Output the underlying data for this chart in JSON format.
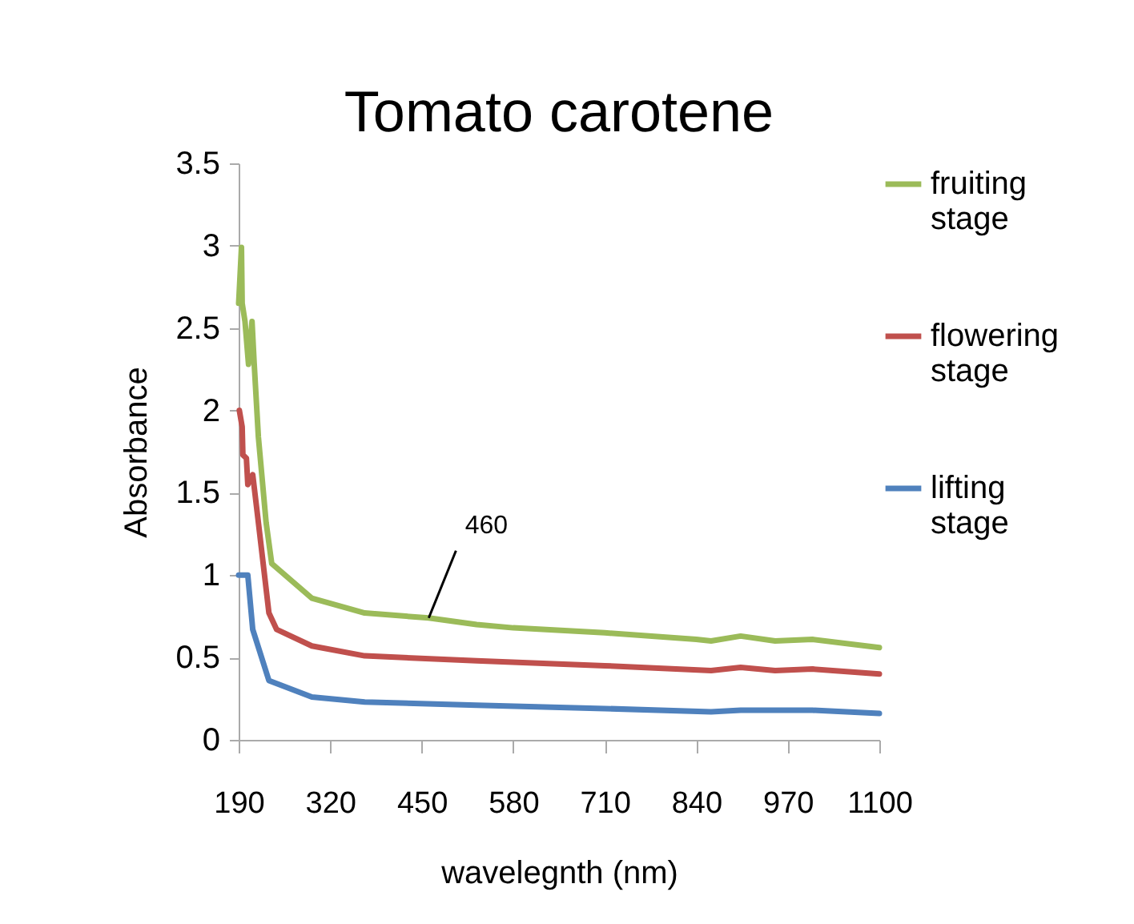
{
  "chart_data": {
    "type": "line",
    "title": "Tomato carotene",
    "xlabel": "wavelegnth (nm)",
    "ylabel": "Absorbance",
    "xlim": [
      190,
      1100
    ],
    "xticks": [
      190,
      320,
      450,
      580,
      710,
      840,
      970,
      1100
    ],
    "ylim": [
      0,
      3.5
    ],
    "yticks": [
      0,
      0.5,
      1,
      1.5,
      2,
      2.5,
      3,
      3.5
    ],
    "grid": false,
    "legend": "right",
    "marker": "none",
    "line_style": "solid",
    "annotations": [
      {
        "text": "460",
        "x": 460,
        "y": 0.74
      }
    ],
    "series": [
      {
        "name": "fruiting stage",
        "color": "#9bbb59",
        "x": [
          190,
          194,
          195,
          199,
          204,
          209,
          212,
          218,
          229,
          237,
          294,
          369,
          460,
          528,
          580,
          710,
          840,
          861,
          903,
          952,
          1005,
          1100
        ],
        "values": [
          2.65,
          2.99,
          2.65,
          2.54,
          2.28,
          2.54,
          2.29,
          1.84,
          1.32,
          1.07,
          0.86,
          0.77,
          0.74,
          0.7,
          0.68,
          0.65,
          0.61,
          0.6,
          0.63,
          0.6,
          0.61,
          0.56
        ]
      },
      {
        "name": "flowering stage",
        "color": "#c0504d",
        "x": [
          191,
          195,
          196,
          201,
          203,
          210,
          218,
          233,
          244,
          294,
          369,
          528,
          710,
          861,
          903,
          952,
          1005,
          1100
        ],
        "values": [
          2.0,
          1.9,
          1.73,
          1.71,
          1.55,
          1.61,
          1.32,
          0.77,
          0.67,
          0.57,
          0.51,
          0.48,
          0.45,
          0.42,
          0.44,
          0.42,
          0.43,
          0.4
        ]
      },
      {
        "name": "lifting stage",
        "color": "#4f81bd",
        "x": [
          190,
          203,
          210,
          233,
          294,
          369,
          528,
          710,
          861,
          903,
          1005,
          1100
        ],
        "values": [
          1.0,
          1.0,
          0.67,
          0.36,
          0.26,
          0.23,
          0.21,
          0.19,
          0.17,
          0.18,
          0.18,
          0.16
        ]
      }
    ]
  }
}
